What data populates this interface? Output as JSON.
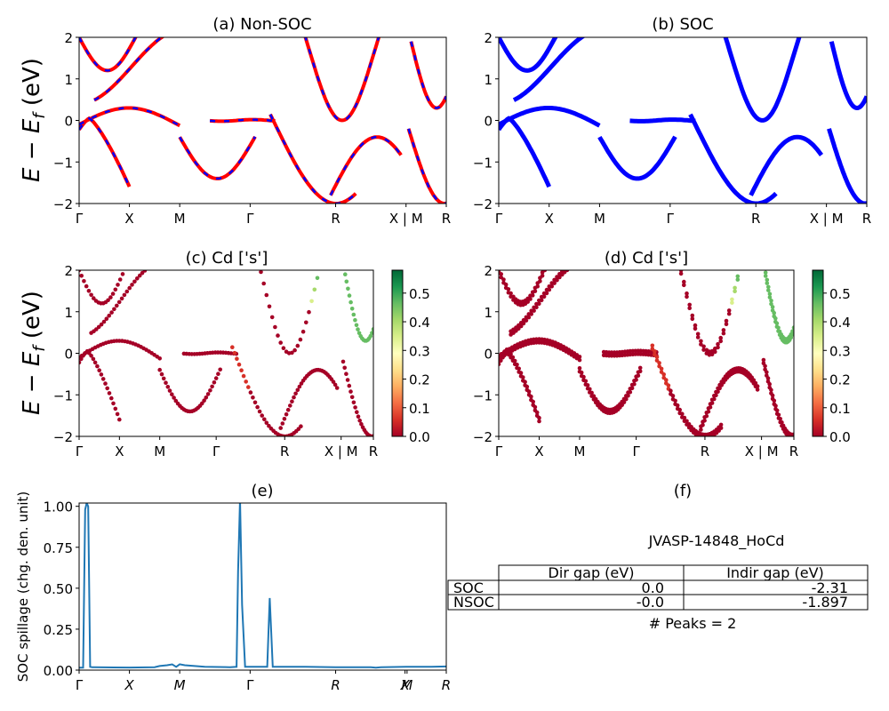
{
  "figure": {
    "system_label": "JVASP-14848_HoCd",
    "peaks_label": "# Peaks = 2"
  },
  "colors": {
    "nonsoc_base": "#ff0000",
    "nonsoc_dash": "#0000ff",
    "soc_bands": "#0000ff",
    "spillage_line": "#1f77b4"
  },
  "kpath_labels": [
    "Γ",
    "X",
    "M",
    "Γ",
    "R",
    "X | M",
    "R"
  ],
  "spillage_kpath_labels": [
    "Γ",
    "X",
    "M",
    "Γ",
    "R",
    "X",
    "M",
    "R"
  ],
  "chart_data": [
    {
      "panel": "a",
      "type": "line",
      "title": "(a) Non-SOC",
      "ylabel": "E − E_f (eV)",
      "ylim": [
        -2,
        2
      ],
      "yticks": [
        "−2",
        "−1",
        "0",
        "1",
        "2"
      ],
      "xticks": [
        "Γ",
        "X",
        "M",
        "Γ",
        "R",
        "X | M",
        "R"
      ],
      "tick_positions": [
        0,
        1,
        2,
        3.4,
        5.1,
        6.5,
        7.3
      ],
      "style": "red solid with blue dashes"
    },
    {
      "panel": "b",
      "type": "line",
      "title": "(b) SOC",
      "ylim": [
        -2,
        2
      ],
      "yticks": [
        "−2",
        "−1",
        "0",
        "1",
        "2"
      ],
      "xticks": [
        "Γ",
        "X",
        "M",
        "Γ",
        "R",
        "X | M",
        "R"
      ],
      "tick_positions": [
        0,
        1,
        2,
        3.4,
        5.1,
        6.5,
        7.3
      ],
      "style": "blue thick doubled bands"
    },
    {
      "panel": "c",
      "type": "scatter",
      "title": "(c)  Cd ['s']",
      "ylabel": "E − E_f (eV)",
      "ylim": [
        -2,
        2
      ],
      "yticks": [
        "−2",
        "−1",
        "0",
        "1",
        "2"
      ],
      "xticks": [
        "Γ",
        "X",
        "M",
        "Γ",
        "R",
        "X | M",
        "R"
      ],
      "tick_positions": [
        0,
        1,
        2,
        3.4,
        5.1,
        6.5,
        7.3
      ],
      "colorbar": {
        "min": 0.0,
        "max": 0.58,
        "ticks": [
          "0.0",
          "0.1",
          "0.2",
          "0.3",
          "0.4",
          "0.5"
        ],
        "colormap": "RdYlGn"
      }
    },
    {
      "panel": "d",
      "type": "scatter",
      "title": "(d) Cd ['s']",
      "ylim": [
        -2,
        2
      ],
      "yticks": [
        "−2",
        "−1",
        "0",
        "1",
        "2"
      ],
      "xticks": [
        "Γ",
        "X",
        "M",
        "Γ",
        "R",
        "X | M",
        "R"
      ],
      "tick_positions": [
        0,
        1,
        2,
        3.4,
        5.1,
        6.5,
        7.3
      ],
      "colorbar": {
        "min": 0.0,
        "max": 0.58,
        "ticks": [
          "0.0",
          "0.1",
          "0.2",
          "0.3",
          "0.4",
          "0.5"
        ],
        "colormap": "RdYlGn"
      }
    },
    {
      "panel": "e",
      "type": "line",
      "title": "(e)",
      "ylabel": "SOC spillage (chg. den. unit)",
      "ylim": [
        0,
        1.02
      ],
      "yticks": [
        "0.00",
        "0.25",
        "0.50",
        "0.75",
        "1.00"
      ],
      "xticks": [
        "Γ",
        "X",
        "M",
        "Γ",
        "R",
        "X",
        "M",
        "R"
      ],
      "tick_positions": [
        0,
        1,
        2,
        3.4,
        5.1,
        6.48,
        6.52,
        7.3
      ],
      "x": [
        0,
        0.08,
        0.12,
        0.15,
        0.18,
        0.22,
        0.26,
        0.3,
        0.5,
        1.0,
        1.5,
        1.6,
        1.75,
        1.85,
        1.93,
        2.0,
        2.1,
        2.3,
        2.5,
        3.0,
        3.13,
        3.16,
        3.2,
        3.24,
        3.3,
        3.6,
        3.74,
        3.79,
        3.85,
        4.5,
        5.1,
        5.8,
        5.9,
        6.0,
        6.5,
        7.0,
        7.3
      ],
      "y": [
        0.015,
        0.015,
        0.98,
        1.02,
        1.0,
        0.02,
        0.018,
        0.018,
        0.017,
        0.016,
        0.018,
        0.025,
        0.03,
        0.035,
        0.02,
        0.036,
        0.03,
        0.025,
        0.02,
        0.018,
        0.02,
        0.6,
        1.04,
        0.4,
        0.02,
        0.02,
        0.02,
        0.44,
        0.02,
        0.02,
        0.018,
        0.018,
        0.015,
        0.018,
        0.02,
        0.02,
        0.022
      ]
    },
    {
      "panel": "f",
      "type": "table",
      "title": "(f)",
      "col_labels": [
        "Dir gap (eV)",
        "Indir gap (eV)"
      ],
      "rows": [
        {
          "label": "SOC",
          "values": [
            "0.0",
            "-2.31"
          ]
        },
        {
          "label": "NSOC",
          "values": [
            "-0.0",
            "-1.897"
          ]
        }
      ]
    }
  ]
}
